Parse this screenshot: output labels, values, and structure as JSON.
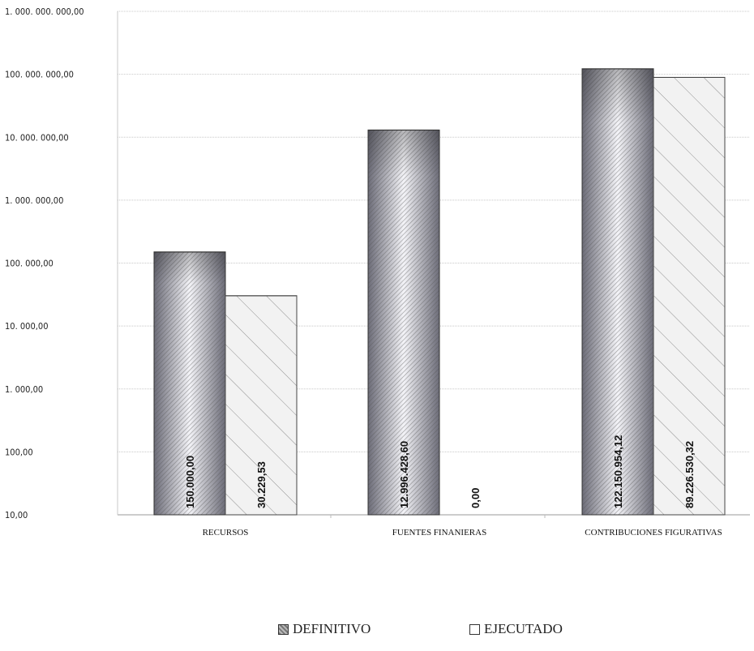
{
  "chart_data": {
    "type": "bar",
    "y_scale": "log",
    "ylim": [
      10,
      1000000000
    ],
    "y_ticks": [
      "10,00",
      "100,00",
      "1. 000,00",
      "10. 000,00",
      "100. 000,00",
      "1. 000. 000,00",
      "10. 000. 000,00",
      "100. 000. 000,00",
      "1. 000. 000. 000,00"
    ],
    "grid": true,
    "categories": [
      "RECURSOS",
      "FUENTES FINANIERAS",
      "CONTRIBUCIONES FIGURATIVAS"
    ],
    "series": [
      {
        "name": "DEFINITIVO",
        "values": [
          150000.0,
          12996428.6,
          122150954.12
        ],
        "labels": [
          "150.000,00",
          "12.996.428,60",
          "122.150.954,12"
        ],
        "color": "#8a8a94"
      },
      {
        "name": "EJECUTADO",
        "values": [
          30229.53,
          0,
          89226530.32
        ],
        "labels": [
          "30.229,53",
          "0,00",
          "89.226.530,32"
        ],
        "color": "#f2f2f2"
      }
    ],
    "legend_position": "bottom"
  },
  "legend": {
    "definitivo": "DEFINITIVO",
    "ejecutado": "EJECUTADO",
    "definitivo_box": "▨",
    "ejecutado_box": "☐"
  }
}
